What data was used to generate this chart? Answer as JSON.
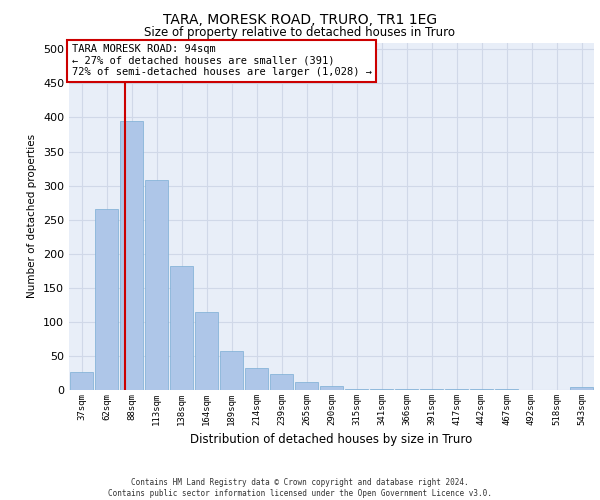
{
  "title": "TARA, MORESK ROAD, TRURO, TR1 1EG",
  "subtitle": "Size of property relative to detached houses in Truro",
  "xlabel": "Distribution of detached houses by size in Truro",
  "ylabel": "Number of detached properties",
  "categories": [
    "37sqm",
    "62sqm",
    "88sqm",
    "113sqm",
    "138sqm",
    "164sqm",
    "189sqm",
    "214sqm",
    "239sqm",
    "265sqm",
    "290sqm",
    "315sqm",
    "341sqm",
    "366sqm",
    "391sqm",
    "417sqm",
    "442sqm",
    "467sqm",
    "492sqm",
    "518sqm",
    "543sqm"
  ],
  "values": [
    27,
    265,
    395,
    308,
    182,
    115,
    57,
    32,
    24,
    12,
    6,
    2,
    1,
    1,
    1,
    1,
    1,
    1,
    0,
    0,
    4
  ],
  "bar_color": "#aec6e8",
  "bar_edge_color": "#7aadd4",
  "grid_color": "#d0d8e8",
  "background_color": "#e8eef8",
  "marker_line_color": "#cc0000",
  "annotation_text": "TARA MORESK ROAD: 94sqm\n← 27% of detached houses are smaller (391)\n72% of semi-detached houses are larger (1,028) →",
  "annotation_box_color": "#ffffff",
  "annotation_box_edge": "#cc0000",
  "ylim": [
    0,
    510
  ],
  "yticks": [
    0,
    50,
    100,
    150,
    200,
    250,
    300,
    350,
    400,
    450,
    500
  ],
  "footer_line1": "Contains HM Land Registry data © Crown copyright and database right 2024.",
  "footer_line2": "Contains public sector information licensed under the Open Government Licence v3.0."
}
